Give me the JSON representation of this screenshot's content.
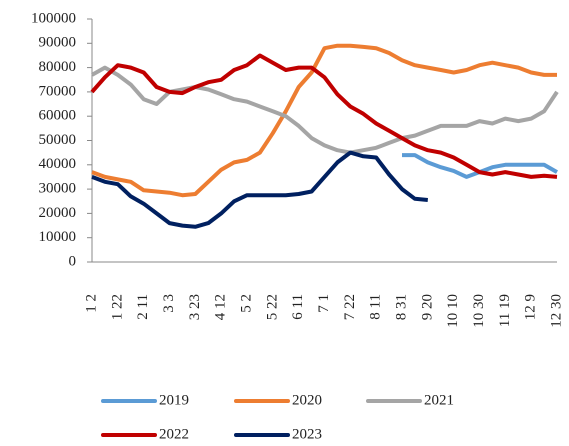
{
  "chart_data": {
    "type": "line",
    "categories": [
      "1 2",
      null,
      "1 22",
      null,
      "2 11",
      null,
      "3 3",
      null,
      "3 23",
      null,
      "4 12",
      null,
      "5 2",
      null,
      "5 22",
      null,
      "6 11",
      null,
      "7 1",
      null,
      "7 22",
      null,
      "8 11",
      null,
      "8 31",
      null,
      "9 20",
      null,
      "10 10",
      null,
      "10 30",
      null,
      "11 19",
      null,
      "12 9",
      null,
      "12 30"
    ],
    "series": [
      {
        "name": "2019",
        "color": "#5b9bd5",
        "values": [
          null,
          null,
          null,
          null,
          null,
          null,
          null,
          null,
          null,
          null,
          null,
          null,
          null,
          null,
          null,
          null,
          null,
          null,
          null,
          null,
          null,
          null,
          null,
          null,
          44000,
          44000,
          41000,
          39000,
          37500,
          35000,
          37000,
          39000,
          40000,
          40000,
          40000,
          40000,
          37000
        ]
      },
      {
        "name": "2020",
        "color": "#ed7d31",
        "values": [
          37000,
          35000,
          34000,
          33000,
          29500,
          29000,
          28500,
          27500,
          28000,
          33000,
          38000,
          41000,
          42000,
          45000,
          53000,
          62000,
          72000,
          78000,
          88000,
          89000,
          89000,
          88500,
          88000,
          86000,
          83000,
          81000,
          80000,
          79000,
          78000,
          79000,
          81000,
          82000,
          81000,
          80000,
          78000,
          77000,
          77000
        ]
      },
      {
        "name": "2021",
        "color": "#a5a5a5",
        "values": [
          77000,
          80000,
          77000,
          73000,
          67000,
          65000,
          70000,
          71000,
          72000,
          71000,
          69000,
          67000,
          66000,
          64000,
          62000,
          60000,
          56000,
          51000,
          48000,
          46000,
          45000,
          46000,
          47000,
          49000,
          51000,
          52000,
          54000,
          56000,
          56000,
          56000,
          58000,
          57000,
          59000,
          58000,
          59000,
          62000,
          70000
        ]
      },
      {
        "name": "2022",
        "color": "#c00000",
        "values": [
          70000,
          76000,
          81000,
          80000,
          78000,
          72000,
          70000,
          69500,
          72000,
          74000,
          75000,
          79000,
          81000,
          85000,
          82000,
          79000,
          80000,
          80000,
          76000,
          69000,
          64000,
          61000,
          57000,
          54000,
          51000,
          48000,
          46000,
          45000,
          43000,
          40000,
          37000,
          36000,
          37000,
          36000,
          35000,
          35500,
          35000
        ]
      },
      {
        "name": "2023",
        "color": "#002060",
        "values": [
          35000,
          33000,
          32000,
          27000,
          24000,
          20000,
          16000,
          15000,
          14500,
          16000,
          20000,
          25000,
          27500,
          27500,
          27500,
          27500,
          28000,
          29000,
          35000,
          41000,
          45000,
          43500,
          43000,
          36000,
          30000,
          26000,
          25500,
          null,
          null,
          null,
          null,
          null,
          null,
          null,
          null,
          null,
          null
        ]
      }
    ],
    "ylim": [
      0,
      100000
    ],
    "yticks": [
      0,
      10000,
      20000,
      30000,
      40000,
      50000,
      60000,
      70000,
      80000,
      90000,
      100000
    ]
  }
}
